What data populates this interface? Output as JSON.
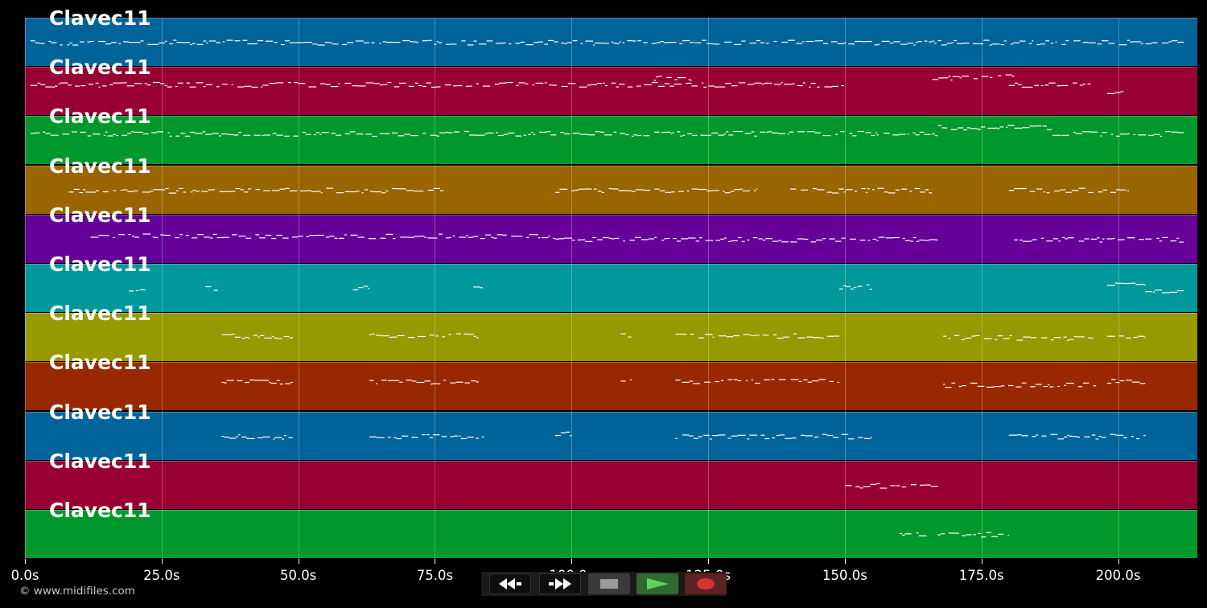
{
  "tracks": [
    {
      "name": "Clavec11",
      "color": "#00649a"
    },
    {
      "name": "Clavec11",
      "color": "#980033"
    },
    {
      "name": "Clavec11",
      "color": "#00982c"
    },
    {
      "name": "Clavec11",
      "color": "#986500"
    },
    {
      "name": "Clavec11",
      "color": "#660098"
    },
    {
      "name": "Clavec11",
      "color": "#00989a"
    },
    {
      "name": "Clavec11",
      "color": "#989800"
    },
    {
      "name": "Clavec11",
      "color": "#982800"
    },
    {
      "name": "Clavec11",
      "color": "#00649a"
    },
    {
      "name": "Clavec11",
      "color": "#980033"
    },
    {
      "name": "Clavec11",
      "color": "#00982c"
    }
  ],
  "timeline": {
    "max_seconds": 214.5,
    "ticks": [
      {
        "value": 0,
        "label": "0.0s"
      },
      {
        "value": 25,
        "label": "25.0s"
      },
      {
        "value": 50,
        "label": "50.0s"
      },
      {
        "value": 75,
        "label": "75.0s"
      },
      {
        "value": 100,
        "label": "100.0s"
      },
      {
        "value": 125,
        "label": "125.0s"
      },
      {
        "value": 150,
        "label": "150.0s"
      },
      {
        "value": 175,
        "label": "175.0s"
      },
      {
        "value": 200,
        "label": "200.0s"
      }
    ]
  },
  "copyright": "© www.midifiles.com",
  "transport": {
    "rewind_icon": "rewind-icon",
    "forward_icon": "fast-forward-icon",
    "stop_icon": "stop-icon",
    "play_icon": "play-icon",
    "record_icon": "record-icon",
    "play_color": "#5fd35f",
    "record_color": "#d83232"
  },
  "note_color": "#ffffff",
  "chart_data": {
    "type": "piano-roll",
    "x_unit": "seconds",
    "xlim": [
      0,
      214.5
    ],
    "note_segments": [
      [
        [
          1,
          212,
          0.5
        ]
      ],
      [
        [
          1,
          150,
          0.3
        ],
        [
          115,
          122,
          0.12
        ],
        [
          166,
          177,
          0.12
        ],
        [
          178,
          181,
          0.05
        ],
        [
          180,
          195,
          0.3
        ],
        [
          198,
          201,
          0.55
        ]
      ],
      [
        [
          1,
          167,
          0.3
        ],
        [
          167,
          188,
          0.12
        ],
        [
          188,
          212,
          0.3
        ]
      ],
      [
        [
          8,
          77,
          0.5
        ],
        [
          97,
          134,
          0.5
        ],
        [
          140,
          166,
          0.5
        ],
        [
          180,
          202,
          0.5
        ]
      ],
      [
        [
          12,
          97,
          0.4
        ],
        [
          97,
          167,
          0.5
        ],
        [
          181,
          212,
          0.5
        ]
      ],
      [
        [
          19,
          22,
          0.5
        ],
        [
          33,
          36,
          0.5
        ],
        [
          60,
          63,
          0.5
        ],
        [
          82,
          84,
          0.4
        ],
        [
          149,
          155,
          0.45
        ],
        [
          198,
          205,
          0.4
        ],
        [
          205,
          212,
          0.55
        ]
      ],
      [
        [
          36,
          49,
          0.45
        ],
        [
          63,
          83,
          0.45
        ],
        [
          109,
          111,
          0.45
        ],
        [
          119,
          149,
          0.45
        ],
        [
          168,
          196,
          0.5
        ],
        [
          198,
          205,
          0.45
        ]
      ],
      [
        [
          36,
          49,
          0.35
        ],
        [
          63,
          83,
          0.35
        ],
        [
          109,
          111,
          0.35
        ],
        [
          119,
          149,
          0.35
        ],
        [
          168,
          196,
          0.45
        ],
        [
          198,
          205,
          0.35
        ]
      ],
      [
        [
          36,
          49,
          0.5
        ],
        [
          63,
          84,
          0.5
        ],
        [
          97,
          100,
          0.4
        ],
        [
          119,
          155,
          0.5
        ],
        [
          180,
          205,
          0.5
        ]
      ],
      [
        [
          150,
          167,
          0.5
        ]
      ],
      [
        [
          160,
          165,
          0.5
        ],
        [
          167,
          180,
          0.5
        ]
      ]
    ]
  }
}
